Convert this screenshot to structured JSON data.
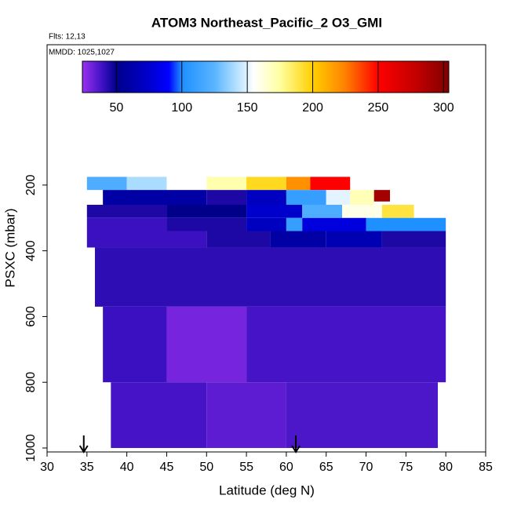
{
  "chart_data": {
    "type": "heatmap",
    "title": "ATOM3 Northeast_Pacific_2 O3_GMI",
    "annotations": [
      "Flts: 12,13",
      "MMDD: 1025,1027"
    ],
    "xlabel": "Latitude (deg N)",
    "ylabel": "PSXC (mbar)",
    "xlim": [
      30,
      85
    ],
    "xticks": [
      30,
      35,
      40,
      45,
      50,
      55,
      60,
      65,
      70,
      75,
      80,
      85
    ],
    "ylim": [
      1012,
      -227
    ],
    "yticks": [
      200,
      400,
      600,
      800,
      1000
    ],
    "clim": [
      24,
      304
    ],
    "cticks": [
      50,
      100,
      150,
      200,
      250,
      300
    ],
    "colormap": [
      {
        "value": 24,
        "color": "#9a30f0"
      },
      {
        "value": 40,
        "color": "#3a10c0"
      },
      {
        "value": 50,
        "color": "#00008b"
      },
      {
        "value": 75,
        "color": "#0000cd"
      },
      {
        "value": 90,
        "color": "#0000ff"
      },
      {
        "value": 100,
        "color": "#1e90ff"
      },
      {
        "value": 125,
        "color": "#5ab4ff"
      },
      {
        "value": 140,
        "color": "#aadcff"
      },
      {
        "value": 155,
        "color": "#ffffff"
      },
      {
        "value": 175,
        "color": "#ffffa0"
      },
      {
        "value": 200,
        "color": "#ffd000"
      },
      {
        "value": 225,
        "color": "#ff8000"
      },
      {
        "value": 250,
        "color": "#ff0000"
      },
      {
        "value": 280,
        "color": "#c00000"
      },
      {
        "value": 304,
        "color": "#800000"
      }
    ],
    "arrows_lat": [
      34.6,
      61.2
    ],
    "cells": [
      {
        "lat": [
          35,
          40
        ],
        "p": [
          175,
          215
        ],
        "o3": 120
      },
      {
        "lat": [
          40,
          45
        ],
        "p": [
          175,
          215
        ],
        "o3": 140
      },
      {
        "lat": [
          45,
          50
        ],
        "p": [
          175,
          215
        ],
        "o3": 155
      },
      {
        "lat": [
          50,
          55
        ],
        "p": [
          175,
          215
        ],
        "o3": 172
      },
      {
        "lat": [
          55,
          60
        ],
        "p": [
          175,
          215
        ],
        "o3": 195
      },
      {
        "lat": [
          60,
          63
        ],
        "p": [
          175,
          215
        ],
        "o3": 220
      },
      {
        "lat": [
          63,
          68
        ],
        "p": [
          175,
          215
        ],
        "o3": 250
      },
      {
        "lat": [
          37,
          50
        ],
        "p": [
          215,
          260
        ],
        "o3": 60
      },
      {
        "lat": [
          50,
          55
        ],
        "p": [
          215,
          260
        ],
        "o3": 45
      },
      {
        "lat": [
          55,
          60
        ],
        "p": [
          215,
          260
        ],
        "o3": 70
      },
      {
        "lat": [
          60,
          65
        ],
        "p": [
          215,
          260
        ],
        "o3": 110
      },
      {
        "lat": [
          65,
          68
        ],
        "p": [
          215,
          260
        ],
        "o3": 150
      },
      {
        "lat": [
          68,
          71
        ],
        "p": [
          215,
          260
        ],
        "o3": 170
      },
      {
        "lat": [
          71,
          73
        ],
        "p": [
          215,
          250
        ],
        "o3": 290
      },
      {
        "lat": [
          35,
          45
        ],
        "p": [
          260,
          300
        ],
        "o3": 45
      },
      {
        "lat": [
          45,
          55
        ],
        "p": [
          260,
          300
        ],
        "o3": 50
      },
      {
        "lat": [
          55,
          62
        ],
        "p": [
          260,
          300
        ],
        "o3": 75
      },
      {
        "lat": [
          62,
          67
        ],
        "p": [
          260,
          300
        ],
        "o3": 120
      },
      {
        "lat": [
          67,
          72
        ],
        "p": [
          260,
          300
        ],
        "o3": 160
      },
      {
        "lat": [
          72,
          76
        ],
        "p": [
          260,
          300
        ],
        "o3": 190
      },
      {
        "lat": [
          35,
          45
        ],
        "p": [
          300,
          340
        ],
        "o3": 40
      },
      {
        "lat": [
          45,
          55
        ],
        "p": [
          300,
          340
        ],
        "o3": 45
      },
      {
        "lat": [
          55,
          60
        ],
        "p": [
          300,
          340
        ],
        "o3": 70
      },
      {
        "lat": [
          60,
          62
        ],
        "p": [
          300,
          340
        ],
        "o3": 110
      },
      {
        "lat": [
          62,
          70
        ],
        "p": [
          300,
          340
        ],
        "o3": 80
      },
      {
        "lat": [
          70,
          80
        ],
        "p": [
          300,
          340
        ],
        "o3": 100
      },
      {
        "lat": [
          35,
          50
        ],
        "p": [
          340,
          390
        ],
        "o3": 40
      },
      {
        "lat": [
          50,
          58
        ],
        "p": [
          340,
          390
        ],
        "o3": 45
      },
      {
        "lat": [
          58,
          65
        ],
        "p": [
          340,
          390
        ],
        "o3": 60
      },
      {
        "lat": [
          65,
          72
        ],
        "p": [
          340,
          390
        ],
        "o3": 65
      },
      {
        "lat": [
          72,
          80
        ],
        "p": [
          340,
          390
        ],
        "o3": 45
      },
      {
        "lat": [
          36,
          80
        ],
        "p": [
          390,
          570
        ],
        "o3": 42
      },
      {
        "lat": [
          37,
          45
        ],
        "p": [
          570,
          800
        ],
        "o3": 40
      },
      {
        "lat": [
          45,
          55
        ],
        "p": [
          570,
          800
        ],
        "o3": 30
      },
      {
        "lat": [
          55,
          80
        ],
        "p": [
          570,
          800
        ],
        "o3": 38
      },
      {
        "lat": [
          38,
          50
        ],
        "p": [
          800,
          1000
        ],
        "o3": 38
      },
      {
        "lat": [
          50,
          60
        ],
        "p": [
          800,
          1000
        ],
        "o3": 34
      },
      {
        "lat": [
          60,
          79
        ],
        "p": [
          800,
          1000
        ],
        "o3": 37
      }
    ]
  }
}
